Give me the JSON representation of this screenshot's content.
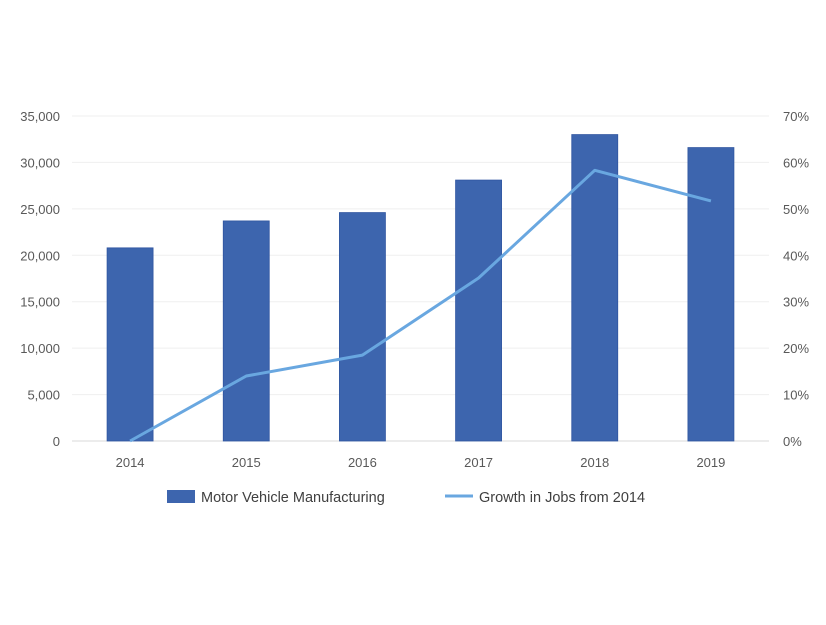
{
  "chart_data": {
    "type": "bar+line",
    "categories": [
      "2014",
      "2015",
      "2016",
      "2017",
      "2018",
      "2019"
    ],
    "series": [
      {
        "name": "Motor Vehicle Manufacturing",
        "type": "bar",
        "axis": "left",
        "color": "#3d65ae",
        "values": [
          20800,
          23700,
          24600,
          28100,
          33000,
          31600
        ]
      },
      {
        "name": "Growth in Jobs from 2014",
        "type": "line",
        "axis": "right",
        "color": "#69a7e0",
        "values": [
          0,
          14.0,
          18.5,
          35.1,
          58.3,
          51.7
        ]
      }
    ],
    "left_axis": {
      "ylim": [
        0,
        35000
      ],
      "ticks": [
        "0",
        "5,000",
        "10,000",
        "15,000",
        "20,000",
        "25,000",
        "30,000",
        "35,000"
      ]
    },
    "right_axis": {
      "ylim": [
        0,
        70
      ],
      "ticks": [
        "0%",
        "10%",
        "20%",
        "30%",
        "40%",
        "50%",
        "60%",
        "70%"
      ]
    },
    "grid": true,
    "legend_position": "bottom",
    "title": "",
    "xlabel": "",
    "ylabel": ""
  }
}
